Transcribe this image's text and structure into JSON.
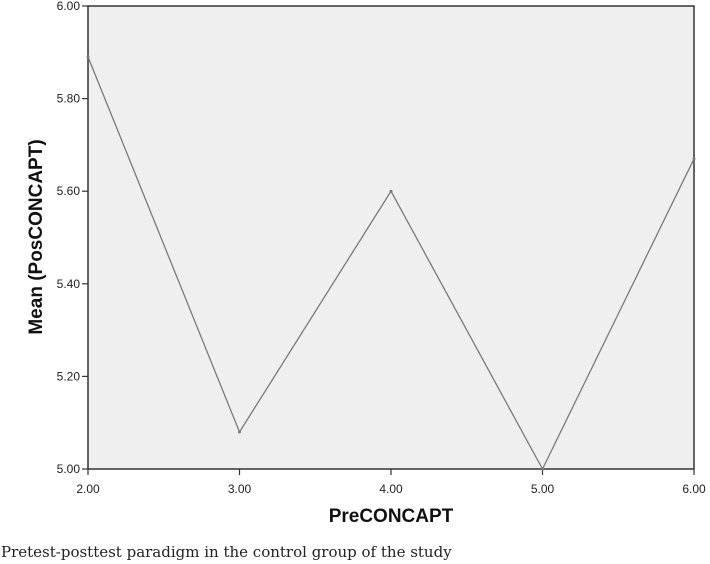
{
  "chart_data": {
    "type": "line",
    "xlabel": "PreCONCAPT",
    "ylabel": "Mean (PosCONCAPT)",
    "xlim": [
      2.0,
      6.0
    ],
    "ylim": [
      5.0,
      6.0
    ],
    "x_ticks": [
      "2.00",
      "3.00",
      "4.00",
      "5.00",
      "6.00"
    ],
    "y_ticks": [
      "5.00",
      "5.20",
      "5.40",
      "5.60",
      "5.80",
      "6.00"
    ],
    "x": [
      2.0,
      3.0,
      4.0,
      5.0,
      6.0
    ],
    "y": [
      5.89,
      5.08,
      5.6,
      5.0,
      5.67
    ],
    "grid": false,
    "legend": "none",
    "colors": {
      "plot_background": "#efefef",
      "line": "#7a7a7a",
      "frame": "#333333"
    }
  },
  "caption": "Pretest-posttest paradigm in the control group of the study"
}
